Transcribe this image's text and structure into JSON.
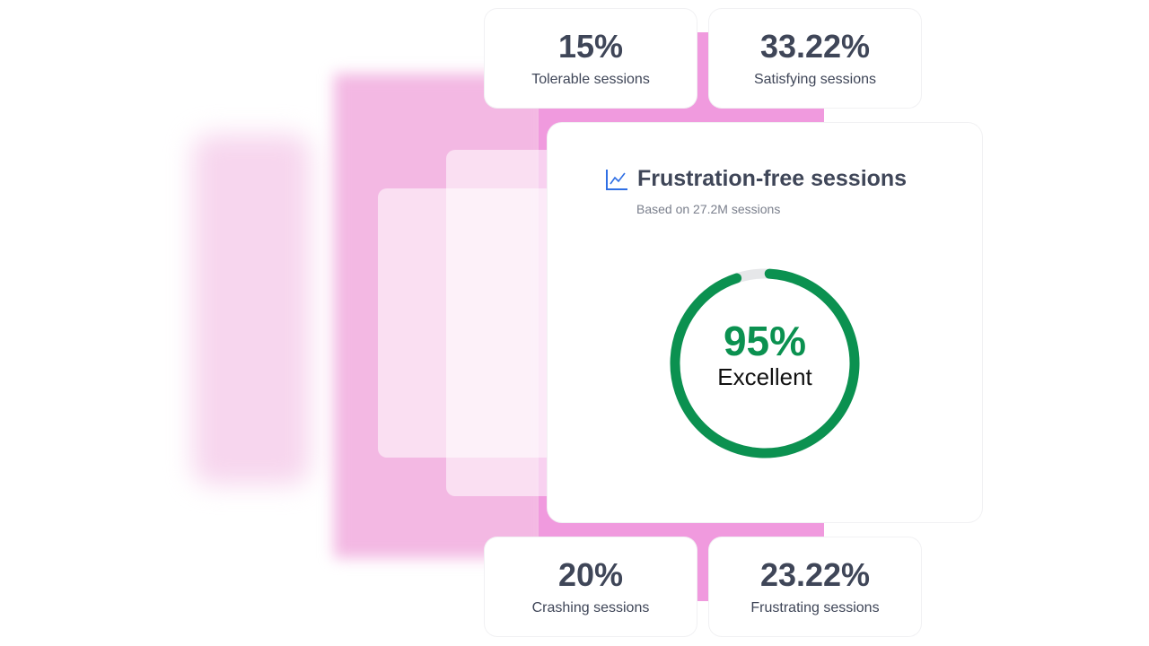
{
  "stats": {
    "tolerable": {
      "value": "15%",
      "label": "Tolerable sessions"
    },
    "satisfying": {
      "value": "33.22%",
      "label": "Satisfying sessions"
    },
    "crashing": {
      "value": "20%",
      "label": "Crashing sessions"
    },
    "frustrating": {
      "value": "23.22%",
      "label": "Frustrating sessions"
    }
  },
  "main_card": {
    "title": "Frustration-free sessions",
    "icon": "line-chart-icon",
    "subtitle": "Based on 27.2M sessions",
    "score_text": "95%",
    "score_fraction": 0.95,
    "rating": "Excellent"
  },
  "colors": {
    "accent_green": "#0b9150",
    "track": "#e6e7e9",
    "pink": "#f09ade",
    "icon_blue": "#2f6fe4"
  }
}
